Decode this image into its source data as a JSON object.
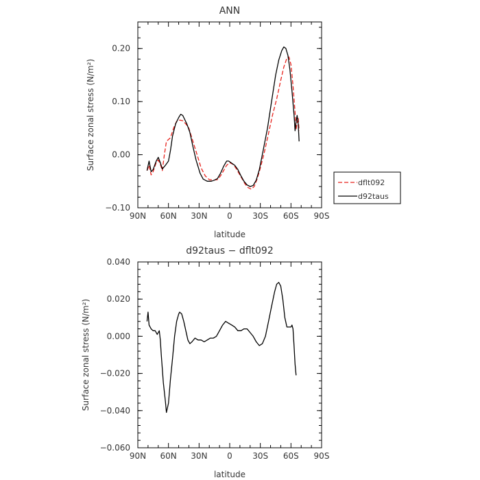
{
  "chart_data": [
    {
      "type": "line",
      "title": "ANN",
      "xlabel": "latitude",
      "ylabel": "Surface zonal stress (N/m²)",
      "xlim": [
        90,
        -90
      ],
      "ylim": [
        -0.1,
        0.25
      ],
      "x_ticks": [
        90,
        60,
        30,
        0,
        -30,
        -60,
        -90
      ],
      "x_tick_labels": [
        "90N",
        "60N",
        "30N",
        "0",
        "30S",
        "60S",
        "90S"
      ],
      "y_ticks": [
        -0.1,
        0.0,
        0.1,
        0.2
      ],
      "y_tick_labels": [
        "−0.10",
        "0.00",
        "0.10",
        "0.20"
      ],
      "legend_position": "right",
      "series": [
        {
          "name": "dflt092",
          "color": "#e8211b",
          "dash": "dashed",
          "points": [
            [
              81,
              -0.03
            ],
            [
              79,
              -0.02
            ],
            [
              77,
              -0.038
            ],
            [
              75,
              -0.032
            ],
            [
              72,
              -0.015
            ],
            [
              70,
              -0.01
            ],
            [
              68,
              -0.018
            ],
            [
              66,
              -0.03
            ],
            [
              64,
              0.0
            ],
            [
              62,
              0.025
            ],
            [
              58,
              0.032
            ],
            [
              55,
              0.05
            ],
            [
              52,
              0.063
            ],
            [
              49,
              0.065
            ],
            [
              46,
              0.064
            ],
            [
              43,
              0.058
            ],
            [
              40,
              0.05
            ],
            [
              36,
              0.025
            ],
            [
              32,
              0.0
            ],
            [
              28,
              -0.025
            ],
            [
              24,
              -0.04
            ],
            [
              20,
              -0.047
            ],
            [
              16,
              -0.048
            ],
            [
              12,
              -0.047
            ],
            [
              9,
              -0.04
            ],
            [
              6,
              -0.03
            ],
            [
              3,
              -0.02
            ],
            [
              0,
              -0.015
            ],
            [
              -3,
              -0.018
            ],
            [
              -6,
              -0.025
            ],
            [
              -9,
              -0.035
            ],
            [
              -12,
              -0.045
            ],
            [
              -15,
              -0.055
            ],
            [
              -18,
              -0.062
            ],
            [
              -21,
              -0.065
            ],
            [
              -24,
              -0.06
            ],
            [
              -27,
              -0.045
            ],
            [
              -30,
              -0.025
            ],
            [
              -34,
              0.005
            ],
            [
              -38,
              0.04
            ],
            [
              -42,
              0.075
            ],
            [
              -46,
              0.105
            ],
            [
              -50,
              0.14
            ],
            [
              -53,
              0.165
            ],
            [
              -56,
              0.182
            ],
            [
              -58,
              0.184
            ],
            [
              -60,
              0.17
            ],
            [
              -62,
              0.13
            ],
            [
              -64,
              0.08
            ],
            [
              -65,
              0.048
            ],
            [
              -66,
              0.06
            ],
            [
              -67,
              0.07
            ],
            [
              -68,
              0.045
            ]
          ]
        },
        {
          "name": "d92taus",
          "color": "#000000",
          "dash": "solid",
          "points": [
            [
              81,
              -0.03
            ],
            [
              79,
              -0.012
            ],
            [
              77,
              -0.032
            ],
            [
              75,
              -0.028
            ],
            [
              72,
              -0.012
            ],
            [
              70,
              -0.005
            ],
            [
              68,
              -0.015
            ],
            [
              66,
              -0.027
            ],
            [
              63,
              -0.02
            ],
            [
              60,
              -0.012
            ],
            [
              58,
              0.008
            ],
            [
              56,
              0.035
            ],
            [
              53,
              0.058
            ],
            [
              50,
              0.07
            ],
            [
              48,
              0.076
            ],
            [
              46,
              0.074
            ],
            [
              44,
              0.066
            ],
            [
              42,
              0.058
            ],
            [
              39,
              0.042
            ],
            [
              36,
              0.015
            ],
            [
              33,
              -0.01
            ],
            [
              29,
              -0.035
            ],
            [
              26,
              -0.046
            ],
            [
              22,
              -0.05
            ],
            [
              18,
              -0.05
            ],
            [
              15,
              -0.048
            ],
            [
              12,
              -0.045
            ],
            [
              9,
              -0.035
            ],
            [
              6,
              -0.022
            ],
            [
              3,
              -0.012
            ],
            [
              1,
              -0.012
            ],
            [
              -2,
              -0.016
            ],
            [
              -5,
              -0.02
            ],
            [
              -8,
              -0.028
            ],
            [
              -11,
              -0.04
            ],
            [
              -14,
              -0.05
            ],
            [
              -17,
              -0.057
            ],
            [
              -20,
              -0.06
            ],
            [
              -23,
              -0.058
            ],
            [
              -26,
              -0.048
            ],
            [
              -29,
              -0.028
            ],
            [
              -33,
              0.01
            ],
            [
              -37,
              0.05
            ],
            [
              -41,
              0.1
            ],
            [
              -45,
              0.15
            ],
            [
              -48,
              0.178
            ],
            [
              -51,
              0.196
            ],
            [
              -53,
              0.203
            ],
            [
              -55,
              0.2
            ],
            [
              -57,
              0.187
            ],
            [
              -59,
              0.16
            ],
            [
              -61,
              0.12
            ],
            [
              -63,
              0.075
            ],
            [
              -64,
              0.045
            ],
            [
              -65,
              0.062
            ],
            [
              -66,
              0.074
            ],
            [
              -67,
              0.06
            ],
            [
              -68,
              0.025
            ]
          ]
        }
      ]
    },
    {
      "type": "line",
      "title": "d92taus − dflt092",
      "xlabel": "latitude",
      "ylabel": "Surface zonal stress (N/m²)",
      "xlim": [
        90,
        -90
      ],
      "ylim": [
        -0.06,
        0.04
      ],
      "x_ticks": [
        90,
        60,
        30,
        0,
        -30,
        -60,
        -90
      ],
      "x_tick_labels": [
        "90N",
        "60N",
        "30N",
        "0",
        "30S",
        "60S",
        "90S"
      ],
      "y_ticks": [
        -0.06,
        -0.04,
        -0.02,
        0.0,
        0.02,
        0.04
      ],
      "y_tick_labels": [
        "−0.060",
        "−0.040",
        "−0.020",
        "0.000",
        "0.020",
        "0.040"
      ],
      "series": [
        {
          "name": "",
          "color": "#000000",
          "dash": "solid",
          "points": [
            [
              81,
              0.008
            ],
            [
              80,
              0.013
            ],
            [
              79,
              0.006
            ],
            [
              77,
              0.004
            ],
            [
              75,
              0.003
            ],
            [
              73,
              0.003
            ],
            [
              71,
              0.001
            ],
            [
              69,
              0.003
            ],
            [
              68,
              -0.002
            ],
            [
              67,
              -0.01
            ],
            [
              65,
              -0.025
            ],
            [
              63,
              -0.035
            ],
            [
              62,
              -0.041
            ],
            [
              60,
              -0.036
            ],
            [
              58,
              -0.023
            ],
            [
              56,
              -0.012
            ],
            [
              54,
              0.0
            ],
            [
              52,
              0.008
            ],
            [
              50,
              0.012
            ],
            [
              49,
              0.013
            ],
            [
              47,
              0.012
            ],
            [
              45,
              0.008
            ],
            [
              43,
              0.003
            ],
            [
              41,
              -0.002
            ],
            [
              39,
              -0.004
            ],
            [
              37,
              -0.003
            ],
            [
              34,
              -0.001
            ],
            [
              31,
              -0.002
            ],
            [
              28,
              -0.002
            ],
            [
              25,
              -0.003
            ],
            [
              22,
              -0.002
            ],
            [
              19,
              -0.001
            ],
            [
              16,
              -0.001
            ],
            [
              13,
              0.0
            ],
            [
              10,
              0.003
            ],
            [
              7,
              0.006
            ],
            [
              4,
              0.008
            ],
            [
              1,
              0.007
            ],
            [
              -2,
              0.006
            ],
            [
              -5,
              0.005
            ],
            [
              -8,
              0.003
            ],
            [
              -11,
              0.003
            ],
            [
              -14,
              0.004
            ],
            [
              -17,
              0.004
            ],
            [
              -20,
              0.002
            ],
            [
              -23,
              0.0
            ],
            [
              -26,
              -0.003
            ],
            [
              -29,
              -0.005
            ],
            [
              -32,
              -0.004
            ],
            [
              -35,
              0.0
            ],
            [
              -38,
              0.008
            ],
            [
              -41,
              0.016
            ],
            [
              -44,
              0.024
            ],
            [
              -46,
              0.028
            ],
            [
              -48,
              0.029
            ],
            [
              -50,
              0.027
            ],
            [
              -52,
              0.02
            ],
            [
              -54,
              0.01
            ],
            [
              -56,
              0.005
            ],
            [
              -58,
              0.005
            ],
            [
              -60,
              0.005
            ],
            [
              -61,
              0.006
            ],
            [
              -62,
              0.004
            ],
            [
              -63,
              -0.005
            ],
            [
              -64,
              -0.015
            ],
            [
              -65,
              -0.021
            ]
          ]
        }
      ]
    }
  ]
}
